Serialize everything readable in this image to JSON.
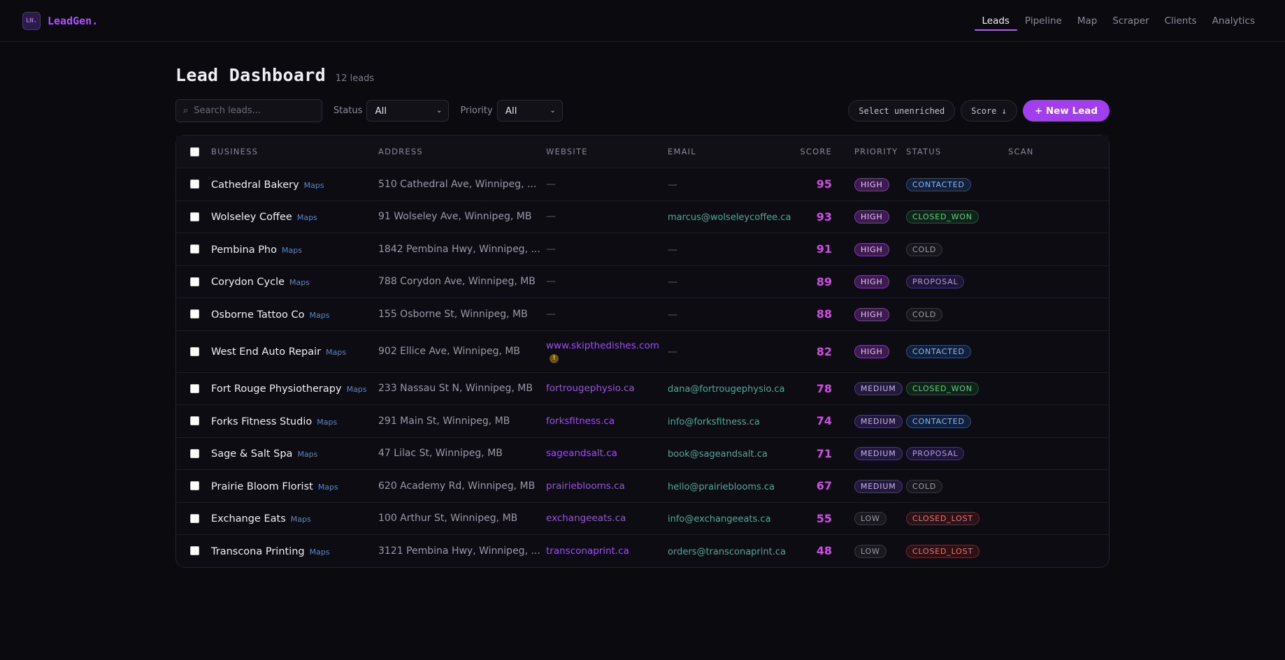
{
  "brand": {
    "mark": "LN.",
    "name": "LeadGen."
  },
  "nav": [
    {
      "label": "Leads",
      "active": true
    },
    {
      "label": "Pipeline",
      "active": false
    },
    {
      "label": "Map",
      "active": false
    },
    {
      "label": "Scraper",
      "active": false
    },
    {
      "label": "Clients",
      "active": false
    },
    {
      "label": "Analytics",
      "active": false
    }
  ],
  "page": {
    "title": "Lead Dashboard",
    "count": "12 leads"
  },
  "toolbar": {
    "search_placeholder": "Search leads...",
    "status_label": "Status",
    "status_value": "All",
    "priority_label": "Priority",
    "priority_value": "All",
    "select_unenriched": "Select unenriched",
    "sort_label": "Score ↓",
    "new_lead": "+ New Lead"
  },
  "table": {
    "columns": [
      "BUSINESS",
      "ADDRESS",
      "WEBSITE",
      "EMAIL",
      "SCORE",
      "PRIORITY",
      "STATUS",
      "SCAN"
    ],
    "maps_label": "Maps",
    "rows": [
      {
        "business": "Cathedral Bakery",
        "address": "510 Cathedral Ave, Winnipeg, ...",
        "website": "—",
        "email": "—",
        "score": "95",
        "priority": "HIGH",
        "status": "CONTACTED",
        "warn": false
      },
      {
        "business": "Wolseley Coffee",
        "address": "91 Wolseley Ave, Winnipeg, MB",
        "website": "—",
        "email": "marcus@wolseleycoffee.ca",
        "score": "93",
        "priority": "HIGH",
        "status": "CLOSED_WON",
        "warn": false
      },
      {
        "business": "Pembina Pho",
        "address": "1842 Pembina Hwy, Winnipeg, ...",
        "website": "—",
        "email": "—",
        "score": "91",
        "priority": "HIGH",
        "status": "COLD",
        "warn": false
      },
      {
        "business": "Corydon Cycle",
        "address": "788 Corydon Ave, Winnipeg, MB",
        "website": "—",
        "email": "—",
        "score": "89",
        "priority": "HIGH",
        "status": "PROPOSAL",
        "warn": false
      },
      {
        "business": "Osborne Tattoo Co",
        "address": "155 Osborne St, Winnipeg, MB",
        "website": "—",
        "email": "—",
        "score": "88",
        "priority": "HIGH",
        "status": "COLD",
        "warn": false
      },
      {
        "business": "West End Auto Repair",
        "address": "902 Ellice Ave, Winnipeg, MB",
        "website": "www.skipthedishes.com",
        "email": "—",
        "score": "82",
        "priority": "HIGH",
        "status": "CONTACTED",
        "warn": true
      },
      {
        "business": "Fort Rouge Physiotherapy",
        "address": "233 Nassau St N, Winnipeg, MB",
        "website": "fortrougephysio.ca",
        "email": "dana@fortrougephysio.ca",
        "score": "78",
        "priority": "MEDIUM",
        "status": "CLOSED_WON",
        "warn": false
      },
      {
        "business": "Forks Fitness Studio",
        "address": "291 Main St, Winnipeg, MB",
        "website": "forksfitness.ca",
        "email": "info@forksfitness.ca",
        "score": "74",
        "priority": "MEDIUM",
        "status": "CONTACTED",
        "warn": false
      },
      {
        "business": "Sage & Salt Spa",
        "address": "47 Lilac St, Winnipeg, MB",
        "website": "sageandsalt.ca",
        "email": "book@sageandsalt.ca",
        "score": "71",
        "priority": "MEDIUM",
        "status": "PROPOSAL",
        "warn": false
      },
      {
        "business": "Prairie Bloom Florist",
        "address": "620 Academy Rd, Winnipeg, MB",
        "website": "prairieblooms.ca",
        "email": "hello@prairieblooms.ca",
        "score": "67",
        "priority": "MEDIUM",
        "status": "COLD",
        "warn": false
      },
      {
        "business": "Exchange Eats",
        "address": "100 Arthur St, Winnipeg, MB",
        "website": "exchangeeats.ca",
        "email": "info@exchangeeats.ca",
        "score": "55",
        "priority": "LOW",
        "status": "CLOSED_LOST",
        "warn": false
      },
      {
        "business": "Transcona Printing",
        "address": "3121 Pembina Hwy, Winnipeg, ...",
        "website": "transconaprint.ca",
        "email": "orders@transconaprint.ca",
        "score": "48",
        "priority": "LOW",
        "status": "CLOSED_LOST",
        "warn": false
      }
    ]
  },
  "colors": {
    "accent": "#a23ef0",
    "score": "#d24be8",
    "link": "#9d4ef0",
    "email": "#4fa99b"
  }
}
